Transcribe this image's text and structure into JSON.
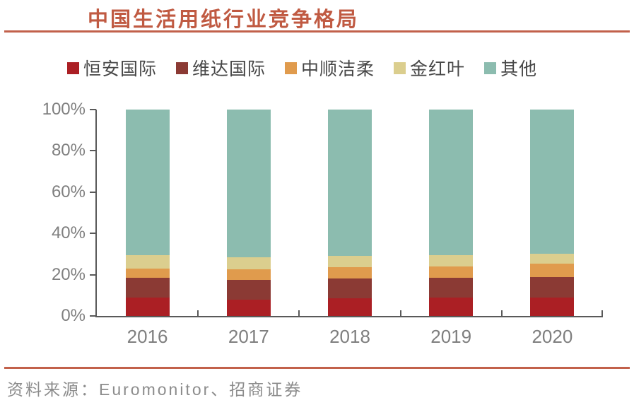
{
  "title": "中国生活用纸行业竞争格局",
  "source": "资料来源：Euromonitor、招商证券",
  "colors": {
    "accent_rule": "#C2614B",
    "title_text": "#C05A42",
    "axis_line": "#595959",
    "tick_label": "#7F7F7F",
    "legend_text": "#474747"
  },
  "chart_data": {
    "type": "bar",
    "stacked": true,
    "unit": "percent",
    "title": "中国生活用纸行业竞争格局",
    "categories": [
      "2016",
      "2017",
      "2018",
      "2019",
      "2020"
    ],
    "series": [
      {
        "name": "恒安国际",
        "color": "#AB1F24",
        "values": [
          9,
          8,
          8.5,
          9,
          9
        ]
      },
      {
        "name": "维达国际",
        "color": "#8B3A34",
        "values": [
          9.5,
          9.5,
          9.5,
          9.5,
          10
        ]
      },
      {
        "name": "中顺洁柔",
        "color": "#E09B4D",
        "values": [
          4.5,
          5,
          5.5,
          5.5,
          6.5
        ]
      },
      {
        "name": "金红叶",
        "color": "#DBCE8E",
        "values": [
          6.5,
          6,
          5.5,
          5.5,
          4.5
        ]
      },
      {
        "name": "其他",
        "color": "#8CBCAF",
        "values": [
          70.5,
          71.5,
          71,
          70.5,
          70
        ]
      }
    ],
    "xlabel": "",
    "ylabel": "",
    "ylim": [
      0,
      100
    ],
    "y_ticks": [
      0,
      20,
      40,
      60,
      80,
      100
    ],
    "y_tick_labels": [
      "0%",
      "20%",
      "40%",
      "60%",
      "80%",
      "100%"
    ],
    "legend_position": "top",
    "grid": false
  }
}
